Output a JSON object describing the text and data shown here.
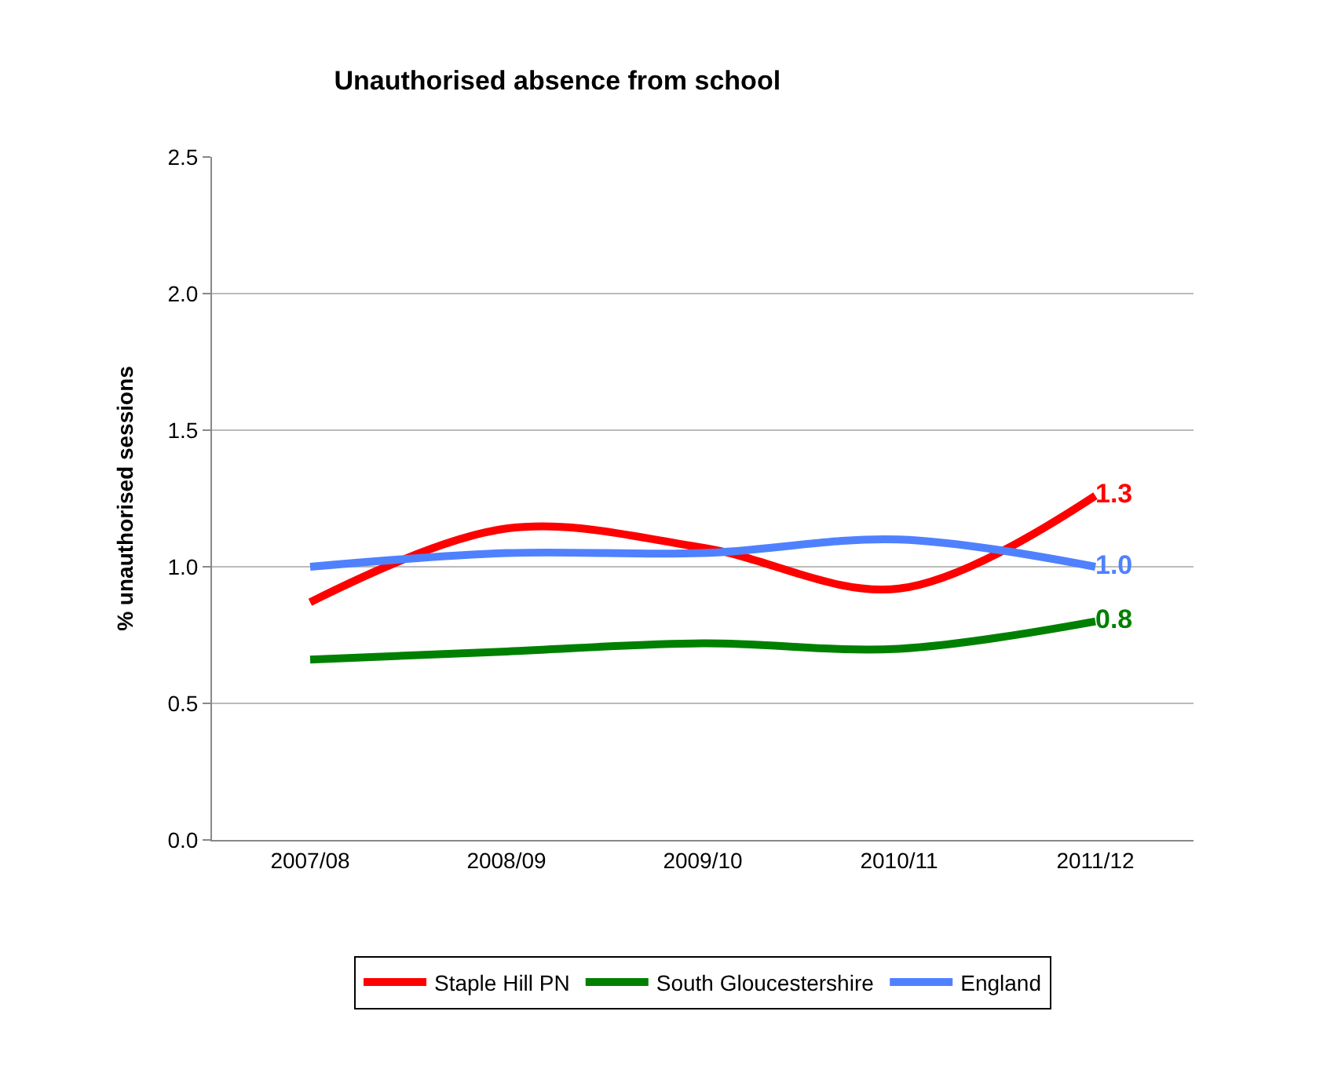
{
  "chart_data": {
    "type": "line",
    "title": "Unauthorised absence from school",
    "ylabel": "% unauthorised sessions",
    "categories": [
      "2007/08",
      "2008/09",
      "2009/10",
      "2010/11",
      "2011/12"
    ],
    "series": [
      {
        "name": "Staple Hill PN",
        "color": "#ff0000",
        "values": [
          0.87,
          1.14,
          1.07,
          0.92,
          1.26
        ],
        "value_labels": [
          null,
          null,
          null,
          null,
          "1.3"
        ]
      },
      {
        "name": "South Gloucestershire",
        "color": "#008000",
        "values": [
          0.66,
          0.69,
          0.72,
          0.7,
          0.8
        ],
        "value_labels": [
          null,
          null,
          null,
          null,
          "0.8"
        ]
      },
      {
        "name": "England",
        "color": "#4f81ff",
        "values": [
          1.0,
          1.05,
          1.05,
          1.1,
          1.0
        ],
        "value_labels": [
          null,
          null,
          null,
          null,
          "1.0"
        ]
      }
    ],
    "ylim": [
      0,
      2.5
    ],
    "yticks": [
      {
        "value": 0,
        "label": "0.0"
      },
      {
        "value": 0.5,
        "label": "0.5"
      },
      {
        "value": 1,
        "label": "1.0"
      },
      {
        "value": 1.5,
        "label": "1.5"
      },
      {
        "value": 2,
        "label": "2.0"
      },
      {
        "value": 2.5,
        "label": "2.5"
      }
    ],
    "grid": "y",
    "legend": "bottom",
    "marker": "none",
    "line_style": "solid"
  }
}
